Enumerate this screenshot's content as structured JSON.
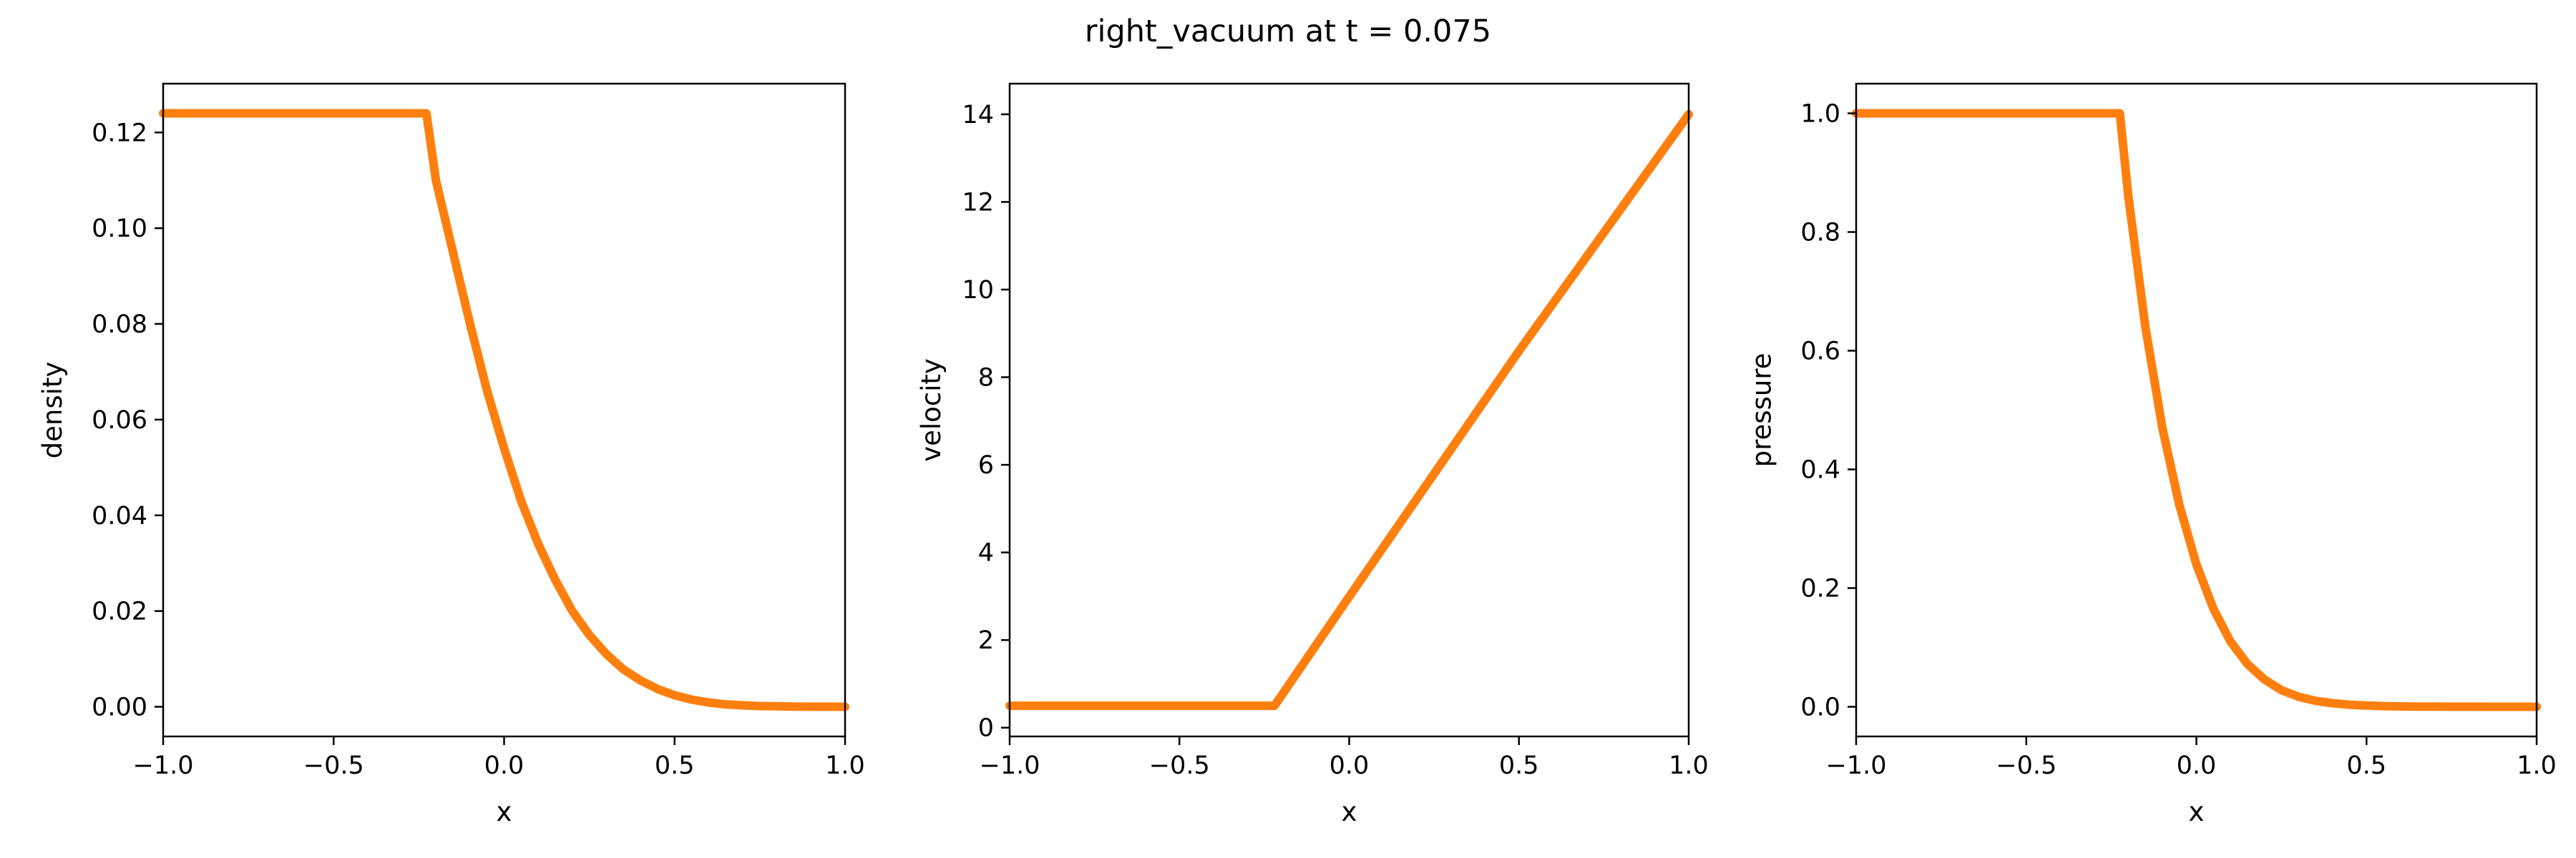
{
  "title": "right_vacuum at t = 0.075",
  "accent_color": "#ff7f0e",
  "chart_data": [
    {
      "type": "line",
      "xlabel": "x",
      "ylabel": "density",
      "xlim": [
        -1.0,
        1.0
      ],
      "ylim": [
        -0.0062,
        0.1302
      ],
      "xticks": [
        -1.0,
        -0.5,
        0.0,
        0.5,
        1.0
      ],
      "xtick_labels": [
        "−1.0",
        "−0.5",
        "0.0",
        "0.5",
        "1.0"
      ],
      "yticks": [
        0.0,
        0.02,
        0.04,
        0.06,
        0.08,
        0.1,
        0.12
      ],
      "ytick_labels": [
        "0.00",
        "0.02",
        "0.04",
        "0.06",
        "0.08",
        "0.10",
        "0.12"
      ],
      "series": [
        {
          "x": [
            -1.0,
            -0.8,
            -0.6,
            -0.4,
            -0.228,
            -0.2,
            -0.15,
            -0.1,
            -0.05,
            0.0,
            0.05,
            0.1,
            0.15,
            0.2,
            0.25,
            0.3,
            0.35,
            0.4,
            0.45,
            0.5,
            0.55,
            0.6,
            0.65,
            0.7,
            0.75,
            0.8,
            0.85,
            0.9,
            0.95,
            1.0
          ],
          "values": [
            0.124,
            0.124,
            0.124,
            0.124,
            0.124,
            0.11,
            0.095,
            0.08,
            0.066,
            0.054,
            0.043,
            0.034,
            0.0265,
            0.02,
            0.015,
            0.011,
            0.0078,
            0.0055,
            0.0037,
            0.0024,
            0.0015,
            0.0009,
            0.0005,
            0.0003,
            0.00015,
            0.0001,
            5e-05,
            2e-05,
            1e-05,
            0.0
          ]
        }
      ]
    },
    {
      "type": "line",
      "xlabel": "x",
      "ylabel": "velocity",
      "xlim": [
        -1.0,
        1.0
      ],
      "ylim": [
        -0.2,
        14.7
      ],
      "xticks": [
        -1.0,
        -0.5,
        0.0,
        0.5,
        1.0
      ],
      "xtick_labels": [
        "−1.0",
        "−0.5",
        "0.0",
        "0.5",
        "1.0"
      ],
      "yticks": [
        0,
        2,
        4,
        6,
        8,
        10,
        12,
        14
      ],
      "ytick_labels": [
        "0",
        "2",
        "4",
        "6",
        "8",
        "10",
        "12",
        "14"
      ],
      "series": [
        {
          "x": [
            -1.0,
            -0.5,
            -0.22,
            0.0,
            0.5,
            1.0
          ],
          "values": [
            0.5,
            0.5,
            0.5,
            2.99,
            8.6,
            14.0
          ]
        }
      ]
    },
    {
      "type": "line",
      "xlabel": "x",
      "ylabel": "pressure",
      "xlim": [
        -1.0,
        1.0
      ],
      "ylim": [
        -0.05,
        1.05
      ],
      "xticks": [
        -1.0,
        -0.5,
        0.0,
        0.5,
        1.0
      ],
      "xtick_labels": [
        "−1.0",
        "−0.5",
        "0.0",
        "0.5",
        "1.0"
      ],
      "yticks": [
        0.0,
        0.2,
        0.4,
        0.6,
        0.8,
        1.0
      ],
      "ytick_labels": [
        "0.0",
        "0.2",
        "0.4",
        "0.6",
        "0.8",
        "1.0"
      ],
      "series": [
        {
          "x": [
            -1.0,
            -0.8,
            -0.6,
            -0.4,
            -0.225,
            -0.2,
            -0.15,
            -0.1,
            -0.05,
            0.0,
            0.05,
            0.1,
            0.15,
            0.2,
            0.25,
            0.3,
            0.35,
            0.4,
            0.45,
            0.5,
            0.55,
            0.6,
            0.65,
            0.7,
            0.75,
            0.8,
            0.85,
            0.9,
            0.95,
            1.0
          ],
          "values": [
            1.0,
            1.0,
            1.0,
            1.0,
            1.0,
            0.86,
            0.64,
            0.47,
            0.34,
            0.24,
            0.165,
            0.11,
            0.072,
            0.046,
            0.028,
            0.017,
            0.01,
            0.006,
            0.0035,
            0.002,
            0.0011,
            0.0006,
            0.0003,
            0.0002,
            0.0001,
            0.0001,
            0.0,
            0.0,
            0.0,
            0.0
          ]
        }
      ]
    }
  ]
}
